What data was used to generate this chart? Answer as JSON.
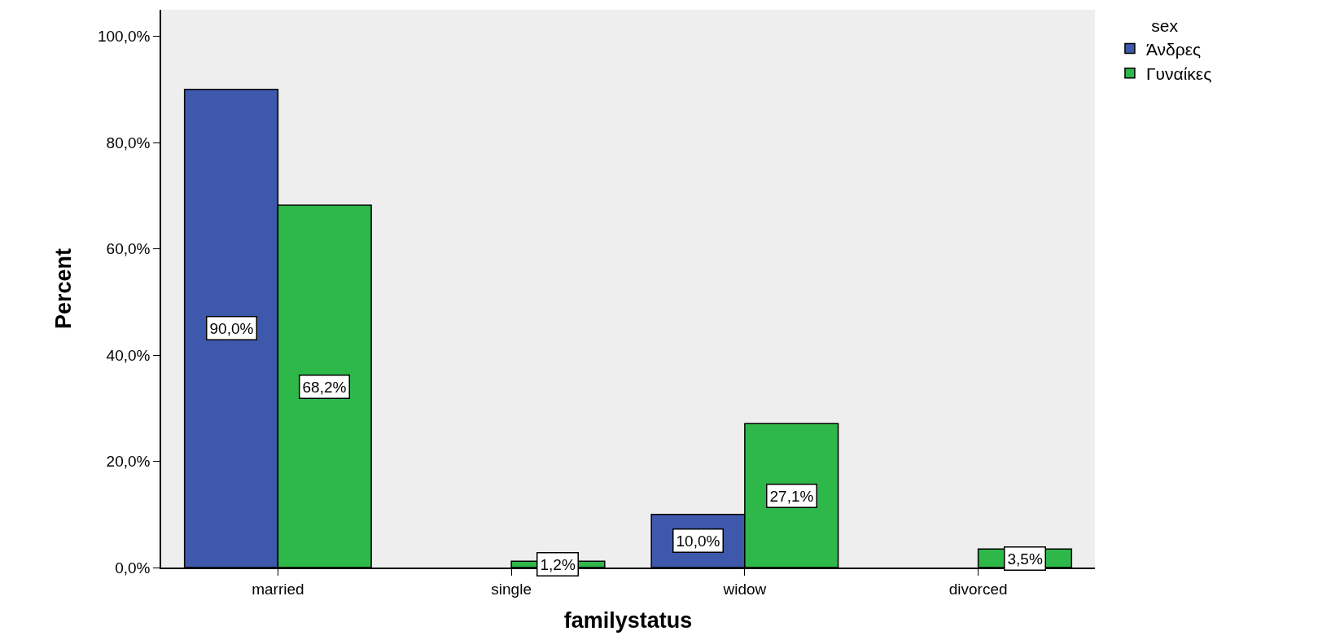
{
  "chart_data": {
    "type": "bar",
    "xlabel": "familystatus",
    "ylabel": "Percent",
    "legend_title": "sex",
    "legend": "top right",
    "categories": [
      "married",
      "single",
      "widow",
      "divorced"
    ],
    "series": [
      {
        "name": "Άνδρες",
        "color": "#3e58ac",
        "values": [
          90.0,
          null,
          10.0,
          null
        ],
        "value_labels": [
          "90,0%",
          null,
          "10,0%",
          null
        ]
      },
      {
        "name": "Γυναίκες",
        "color": "#2fb84a",
        "values": [
          68.2,
          1.2,
          27.1,
          3.5
        ],
        "value_labels": [
          "68,2%",
          "1,2%",
          "27,1%",
          "3,5%"
        ]
      }
    ],
    "ylim": [
      0,
      105
    ],
    "yticks": [
      {
        "value": 0,
        "label": "0,0%"
      },
      {
        "value": 20,
        "label": "20,0%"
      },
      {
        "value": 40,
        "label": "40,0%"
      },
      {
        "value": 60,
        "label": "60,0%"
      },
      {
        "value": 80,
        "label": "80,0%"
      },
      {
        "value": 100,
        "label": "100,0%"
      }
    ],
    "grid": false
  }
}
